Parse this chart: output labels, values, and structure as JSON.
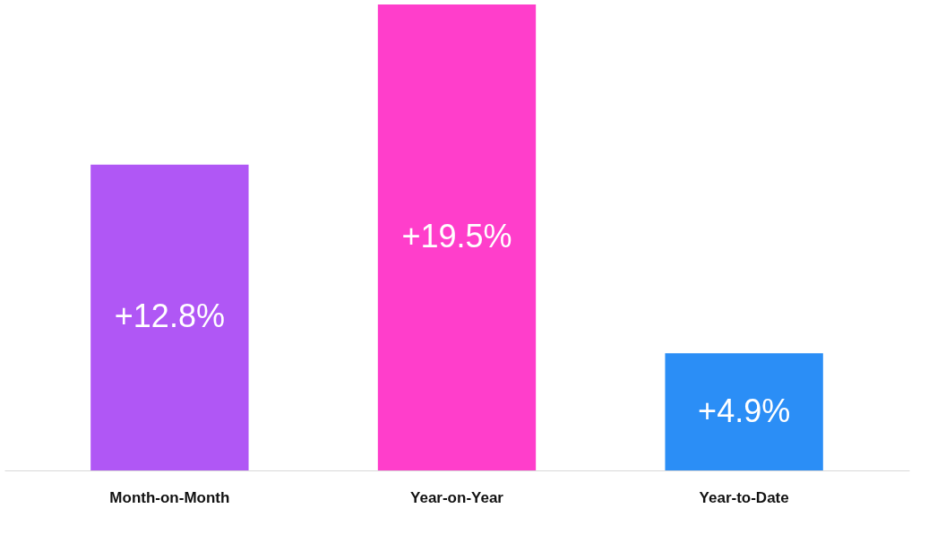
{
  "chart_data": {
    "type": "bar",
    "categories": [
      "Month-on-Month",
      "Year-on-Year",
      "Year-to-Date"
    ],
    "values": [
      12.8,
      19.5,
      4.9
    ],
    "colors": [
      "#b057f5",
      "#ff3ecb",
      "#2b8ef6"
    ],
    "value_labels": [
      "+12.8%",
      "+19.5%",
      "+4.9%"
    ],
    "grid": false,
    "legend": false
  }
}
